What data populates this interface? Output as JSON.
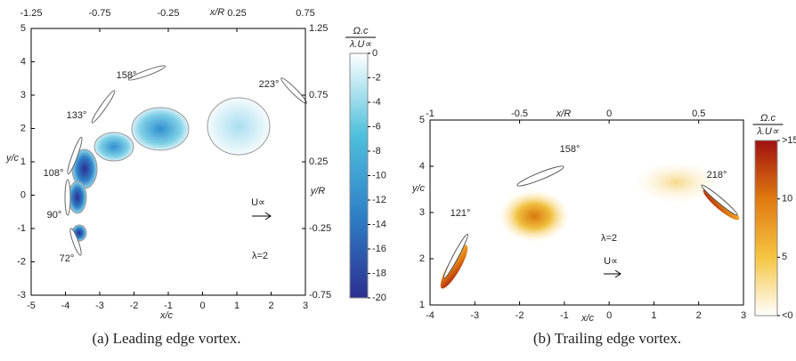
{
  "chart_data": [
    {
      "type": "contour",
      "caption": "(a) Leading edge vortex.",
      "xlabel": "x/c",
      "ylabel": "y/c",
      "x2label": "x/R",
      "y2label": "y/R",
      "xlim": [
        -5,
        3
      ],
      "xticks": [
        -5,
        -4,
        -3,
        -2,
        -1,
        0,
        1,
        2,
        3
      ],
      "ylim": [
        -3,
        5
      ],
      "yticks": [
        -3,
        -2,
        -1,
        0,
        1,
        2,
        3,
        4,
        5
      ],
      "x2lim": [
        -1.25,
        0.75
      ],
      "x2ticks": [
        -1.25,
        -0.75,
        -0.25,
        0.25,
        0.75
      ],
      "y2lim": [
        -0.75,
        1.25
      ],
      "y2ticks": [
        -0.75,
        -0.25,
        0.25,
        0.75,
        1.25
      ],
      "colorbar": {
        "numerator": "Ω.c",
        "denominator": "λ.U∝",
        "colors": [
          "#2c2f8f",
          "#2f7fc6",
          "#4fc0dc",
          "#ffffff"
        ],
        "lim": [
          -20,
          0
        ],
        "ticks": [
          0,
          -2,
          -4,
          -6,
          -8,
          -10,
          -12,
          -14,
          -16,
          -18,
          -20
        ]
      },
      "annotations": [
        "158°",
        "133°",
        "108°",
        "90°",
        "72°",
        "223°",
        "U∝",
        "λ=2"
      ]
    },
    {
      "type": "contour",
      "caption": "(b) Trailing edge vortex.",
      "xlabel": "x/c",
      "ylabel": "y/c",
      "x2label": "x/R",
      "xlim": [
        -4,
        3
      ],
      "xticks": [
        -4,
        -3,
        -2,
        -1,
        0,
        1,
        2,
        3
      ],
      "ylim": [
        1,
        5
      ],
      "yticks": [
        1,
        2,
        3,
        4,
        5
      ],
      "x2lim": [
        -1,
        0.75
      ],
      "x2ticks": [
        -1,
        -0.5,
        0,
        0.5
      ],
      "colorbar": {
        "numerator": "Ω.c",
        "denominator": "λ.U∝",
        "colors": [
          "#ffffff",
          "#f5c542",
          "#e07a10",
          "#a01010"
        ],
        "lim": [
          0,
          15
        ],
        "ticks": [
          {
            "value": 15,
            "label": ">15"
          },
          10,
          5,
          {
            "value": 0,
            "label": "<0"
          }
        ]
      },
      "annotations": [
        "121°",
        "158°",
        "218°",
        "λ=2",
        "U∝"
      ]
    }
  ]
}
